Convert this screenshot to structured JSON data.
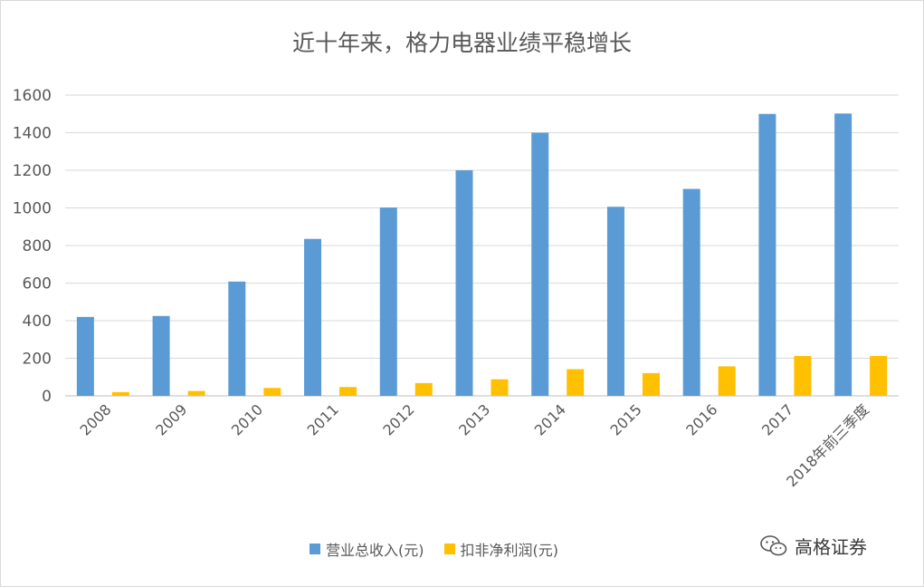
{
  "chart_data": {
    "type": "bar",
    "title": "近十年来，格力电器业绩平稳增长",
    "categories": [
      "2008",
      "2009",
      "2010",
      "2011",
      "2012",
      "2013",
      "2014",
      "2015",
      "2016",
      "2017",
      "2018年前三季度"
    ],
    "series": [
      {
        "name": "营业总收入(元)",
        "color": "#5b9bd5",
        "values": [
          420,
          425,
          608,
          835,
          1002,
          1200,
          1400,
          1006,
          1101,
          1500,
          1502
        ]
      },
      {
        "name": "扣非净利润(元)",
        "color": "#ffc000",
        "values": [
          20,
          26,
          42,
          47,
          68,
          88,
          142,
          121,
          157,
          212,
          212
        ]
      }
    ],
    "ylim": [
      0,
      1600
    ],
    "yticks": [
      0,
      200,
      400,
      600,
      800,
      1000,
      1200,
      1400,
      1600
    ],
    "grid": true,
    "legend": "bottom",
    "xlabel": "",
    "ylabel": ""
  },
  "watermark": {
    "text": "高格证券",
    "icon": "wechat-icon"
  }
}
